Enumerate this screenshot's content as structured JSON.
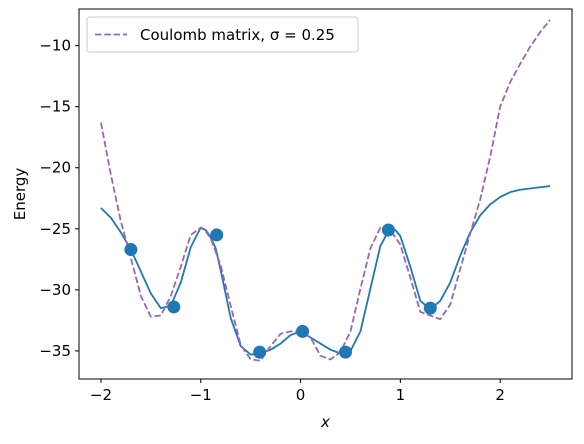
{
  "chart_data": {
    "type": "line",
    "xlabel": "x",
    "ylabel": "Energy",
    "xlim": [
      -2.22,
      2.72
    ],
    "ylim": [
      -37.3,
      -7.0
    ],
    "xticks": [
      -2,
      -1,
      0,
      1,
      2
    ],
    "yticks": [
      -35,
      -30,
      -25,
      -20,
      -15,
      -10
    ],
    "xtick_labels": [
      "−2",
      "−1",
      "0",
      "1",
      "2"
    ],
    "ytick_labels": [
      "−35",
      "−30",
      "−25",
      "−20",
      "−15",
      "−10"
    ],
    "grid": false,
    "legend": {
      "placement": "top-left",
      "entries": [
        "Coulomb matrix, σ = 0.25"
      ]
    },
    "series": [
      {
        "name": "",
        "kind": "line",
        "style": "solid",
        "color": "#1f77b4",
        "x": [
          -2.0,
          -1.9,
          -1.8,
          -1.7,
          -1.6,
          -1.5,
          -1.4,
          -1.3,
          -1.2,
          -1.1,
          -1.0,
          -0.95,
          -0.9,
          -0.85,
          -0.8,
          -0.7,
          -0.6,
          -0.5,
          -0.4,
          -0.3,
          -0.2,
          -0.1,
          0.0,
          0.1,
          0.2,
          0.3,
          0.4,
          0.5,
          0.6,
          0.7,
          0.8,
          0.9,
          0.95,
          1.0,
          1.1,
          1.2,
          1.3,
          1.4,
          1.5,
          1.6,
          1.7,
          1.8,
          1.9,
          2.0,
          2.1,
          2.2,
          2.3,
          2.4,
          2.5
        ],
        "y": [
          -23.3,
          -24.1,
          -25.3,
          -26.7,
          -28.5,
          -30.3,
          -31.5,
          -31.3,
          -29.4,
          -26.5,
          -24.9,
          -25.1,
          -25.7,
          -26.6,
          -28.4,
          -32.3,
          -34.6,
          -35.3,
          -35.2,
          -34.9,
          -34.4,
          -33.7,
          -33.4,
          -33.9,
          -34.4,
          -34.9,
          -35.2,
          -35.0,
          -33.4,
          -29.9,
          -26.4,
          -24.9,
          -25.1,
          -25.6,
          -28.1,
          -30.9,
          -31.6,
          -30.9,
          -29.4,
          -27.2,
          -25.3,
          -23.9,
          -23.0,
          -22.4,
          -22.0,
          -21.8,
          -21.7,
          -21.6,
          -21.5
        ]
      },
      {
        "name": "Coulomb matrix, σ = 0.25",
        "kind": "line",
        "style": "dashed",
        "color": "#9467bd",
        "x": [
          -2.0,
          -1.9,
          -1.8,
          -1.7,
          -1.6,
          -1.5,
          -1.4,
          -1.3,
          -1.2,
          -1.1,
          -1.0,
          -0.95,
          -0.9,
          -0.8,
          -0.7,
          -0.6,
          -0.5,
          -0.4,
          -0.3,
          -0.2,
          -0.1,
          0.0,
          0.1,
          0.2,
          0.3,
          0.4,
          0.5,
          0.6,
          0.7,
          0.8,
          0.9,
          1.0,
          1.1,
          1.2,
          1.3,
          1.4,
          1.5,
          1.6,
          1.7,
          1.8,
          1.9,
          2.0,
          2.1,
          2.2,
          2.3,
          2.4,
          2.5
        ],
        "y": [
          -16.3,
          -20.6,
          -24.4,
          -27.4,
          -30.5,
          -32.2,
          -32.1,
          -30.5,
          -28.1,
          -25.5,
          -24.9,
          -25.2,
          -25.8,
          -28.0,
          -31.3,
          -34.5,
          -35.7,
          -35.8,
          -34.6,
          -33.6,
          -33.4,
          -33.4,
          -33.9,
          -35.4,
          -35.7,
          -35.1,
          -33.4,
          -29.9,
          -26.6,
          -24.9,
          -25.1,
          -26.3,
          -29.0,
          -31.8,
          -32.1,
          -32.4,
          -31.2,
          -28.3,
          -25.4,
          -22.6,
          -19.1,
          -15.0,
          -13.0,
          -11.5,
          -10.1,
          -8.9,
          -7.9
        ]
      },
      {
        "name": "",
        "kind": "scatter",
        "color": "#1f77b4",
        "x": [
          -1.7,
          -1.27,
          -0.84,
          -0.41,
          0.02,
          0.45,
          0.88,
          1.3
        ],
        "y": [
          -26.7,
          -31.4,
          -25.5,
          -35.1,
          -33.4,
          -35.1,
          -25.1,
          -31.5
        ]
      }
    ]
  }
}
